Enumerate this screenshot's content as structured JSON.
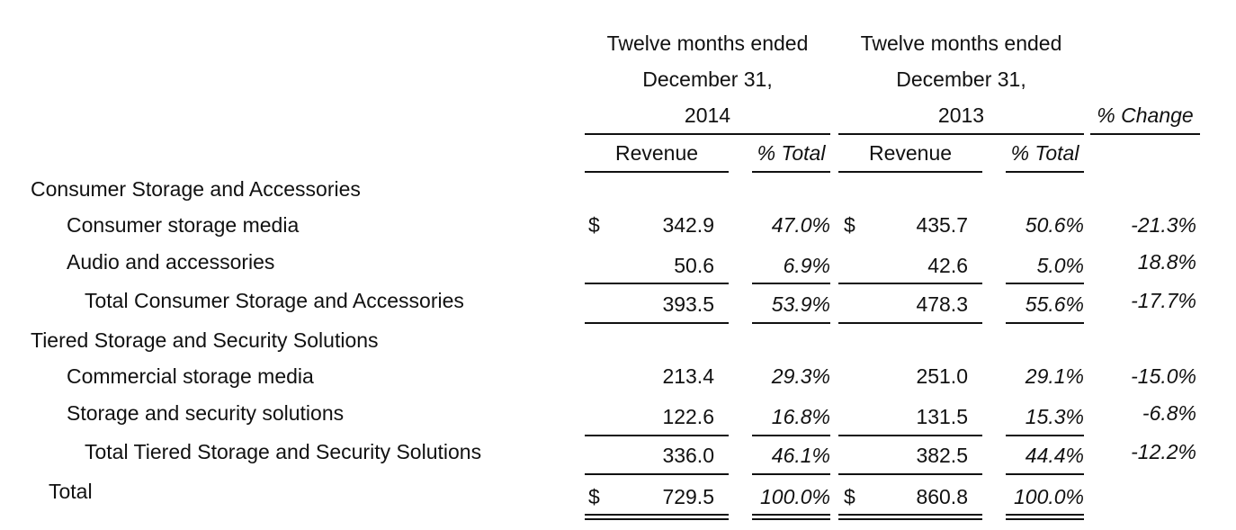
{
  "header": {
    "period_2014": [
      "Twelve months ended",
      "December 31,",
      "2014"
    ],
    "period_2013": [
      "Twelve months ended",
      "December 31,",
      "2013"
    ],
    "pct_change": "% Change",
    "revenue": "Revenue",
    "pct_total": "% Total"
  },
  "sections": {
    "consumer": {
      "title": "Consumer Storage and Accessories",
      "rows": [
        {
          "label": "Consumer storage media",
          "cur1": "$",
          "rev2014": "342.9",
          "pct2014": "47.0%",
          "cur2": "$",
          "rev2013": "435.7",
          "pct2013": "50.6%",
          "change": "-21.3%"
        },
        {
          "label": "Audio and accessories",
          "rev2014": "50.6",
          "pct2014": "6.9%",
          "rev2013": "42.6",
          "pct2013": "5.0%",
          "change": "18.8%"
        }
      ],
      "total": {
        "label": "Total Consumer Storage and Accessories",
        "rev2014": "393.5",
        "pct2014": "53.9%",
        "rev2013": "478.3",
        "pct2013": "55.6%",
        "change": "-17.7%"
      }
    },
    "tiered": {
      "title": "Tiered Storage and Security Solutions",
      "rows": [
        {
          "label": "Commercial storage media",
          "rev2014": "213.4",
          "pct2014": "29.3%",
          "rev2013": "251.0",
          "pct2013": "29.1%",
          "change": "-15.0%"
        },
        {
          "label": "Storage and security solutions",
          "rev2014": "122.6",
          "pct2014": "16.8%",
          "rev2013": "131.5",
          "pct2013": "15.3%",
          "change": "-6.8%"
        }
      ],
      "total": {
        "label": "Total Tiered Storage and Security Solutions",
        "rev2014": "336.0",
        "pct2014": "46.1%",
        "rev2013": "382.5",
        "pct2013": "44.4%",
        "change": "-12.2%"
      }
    }
  },
  "grand_total": {
    "label": "Total",
    "cur1": "$",
    "rev2014": "729.5",
    "pct2014": "100.0%",
    "cur2": "$",
    "rev2013": "860.8",
    "pct2013": "100.0%"
  }
}
